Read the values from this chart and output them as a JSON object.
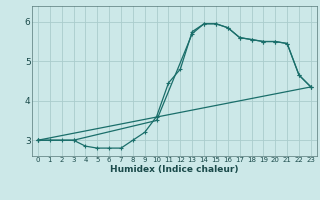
{
  "xlabel": "Humidex (Indice chaleur)",
  "ylabel": "",
  "background_color": "#cce8e8",
  "grid_color": "#aacccc",
  "line_color": "#1a6e6a",
  "xlim": [
    -0.5,
    23.5
  ],
  "ylim": [
    2.6,
    6.4
  ],
  "yticks": [
    3,
    4,
    5,
    6
  ],
  "xticks": [
    0,
    1,
    2,
    3,
    4,
    5,
    6,
    7,
    8,
    9,
    10,
    11,
    12,
    13,
    14,
    15,
    16,
    17,
    18,
    19,
    20,
    21,
    22,
    23
  ],
  "line1_x": [
    0,
    1,
    2,
    3,
    4,
    5,
    6,
    7,
    8,
    9,
    10,
    11,
    12,
    13,
    14,
    15,
    16,
    17,
    18,
    19,
    20,
    21,
    22,
    23
  ],
  "line1_y": [
    3.0,
    3.0,
    3.0,
    3.0,
    2.85,
    2.8,
    2.8,
    2.8,
    3.0,
    3.2,
    3.6,
    4.45,
    4.8,
    5.75,
    5.95,
    5.95,
    5.85,
    5.6,
    5.55,
    5.5,
    5.5,
    5.45,
    4.65,
    4.35
  ],
  "line2_x": [
    0,
    3,
    10,
    13,
    14,
    15,
    16,
    17,
    18,
    19,
    20,
    21,
    22,
    23
  ],
  "line2_y": [
    3.0,
    3.0,
    3.5,
    5.7,
    5.95,
    5.95,
    5.85,
    5.6,
    5.55,
    5.5,
    5.5,
    5.45,
    4.65,
    4.35
  ],
  "line3_x": [
    0,
    23
  ],
  "line3_y": [
    3.0,
    4.35
  ]
}
